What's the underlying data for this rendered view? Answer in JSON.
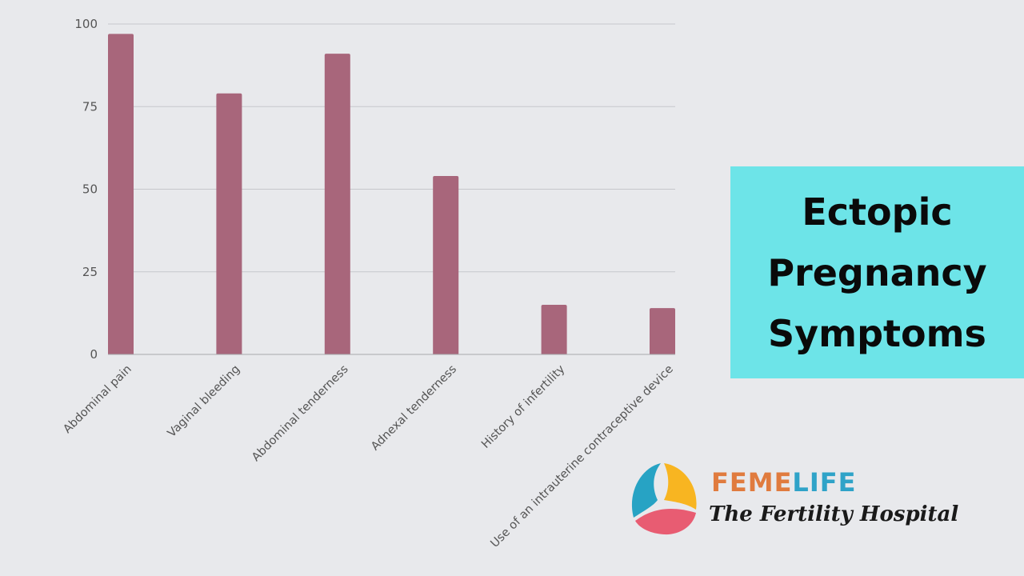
{
  "chart_data": {
    "type": "bar",
    "title": "",
    "xlabel": "",
    "ylabel": "",
    "categories": [
      "Abdominal pain",
      "Vaginal bleeding",
      "Abdominal tenderness",
      "Adnexal tenderness",
      "History of infertility",
      "Use of an intrauterine contraceptive device"
    ],
    "values": [
      97,
      79,
      91,
      54,
      15,
      14
    ],
    "ylim": [
      0,
      100
    ],
    "yticks": [
      "0",
      "25",
      "50",
      "75",
      "100"
    ],
    "grid": true,
    "bar_color": "#a8667b"
  },
  "side_title": {
    "line1": "Ectopic",
    "line2": "Pregnancy",
    "line3": "Symptoms",
    "background": "#6de4e8"
  },
  "logo": {
    "brand_part1": "FEME",
    "brand_part2": "LIFE",
    "tagline": "The Fertility Hospital",
    "colors": {
      "feme": "#e07b3e",
      "life": "#2fa3c8",
      "petal_blue": "#27a3c4",
      "petal_yellow": "#f8b521",
      "petal_pink": "#e85c72"
    }
  }
}
